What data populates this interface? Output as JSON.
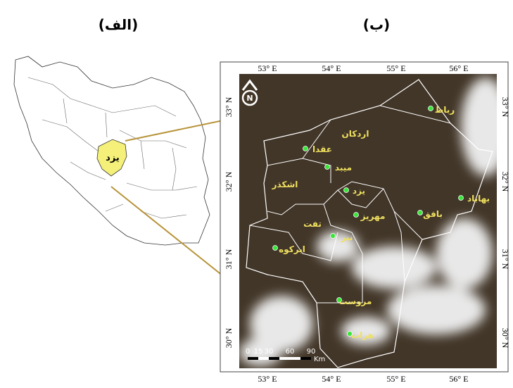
{
  "labels": {
    "left": "(الف)",
    "right": "(ب)"
  },
  "left_map": {
    "province": "یزد"
  },
  "right_map": {
    "x_labels": [
      "53° E",
      "54° E",
      "55° E",
      "56° E"
    ],
    "y_labels": [
      "33° N",
      "32° N",
      "31° N",
      "30° N"
    ],
    "north": "N",
    "cities": [
      "رباط",
      "اردکان",
      "عقدا",
      "میبد",
      "اشکذر",
      "یزد",
      "بهاباد",
      "بافق",
      "مهریز",
      "تفت",
      "نیر",
      "ابرکوه",
      "مروست",
      "هرات"
    ],
    "scale": {
      "ticks": [
        0,
        15,
        30,
        60,
        90
      ],
      "unit": "Km"
    }
  }
}
